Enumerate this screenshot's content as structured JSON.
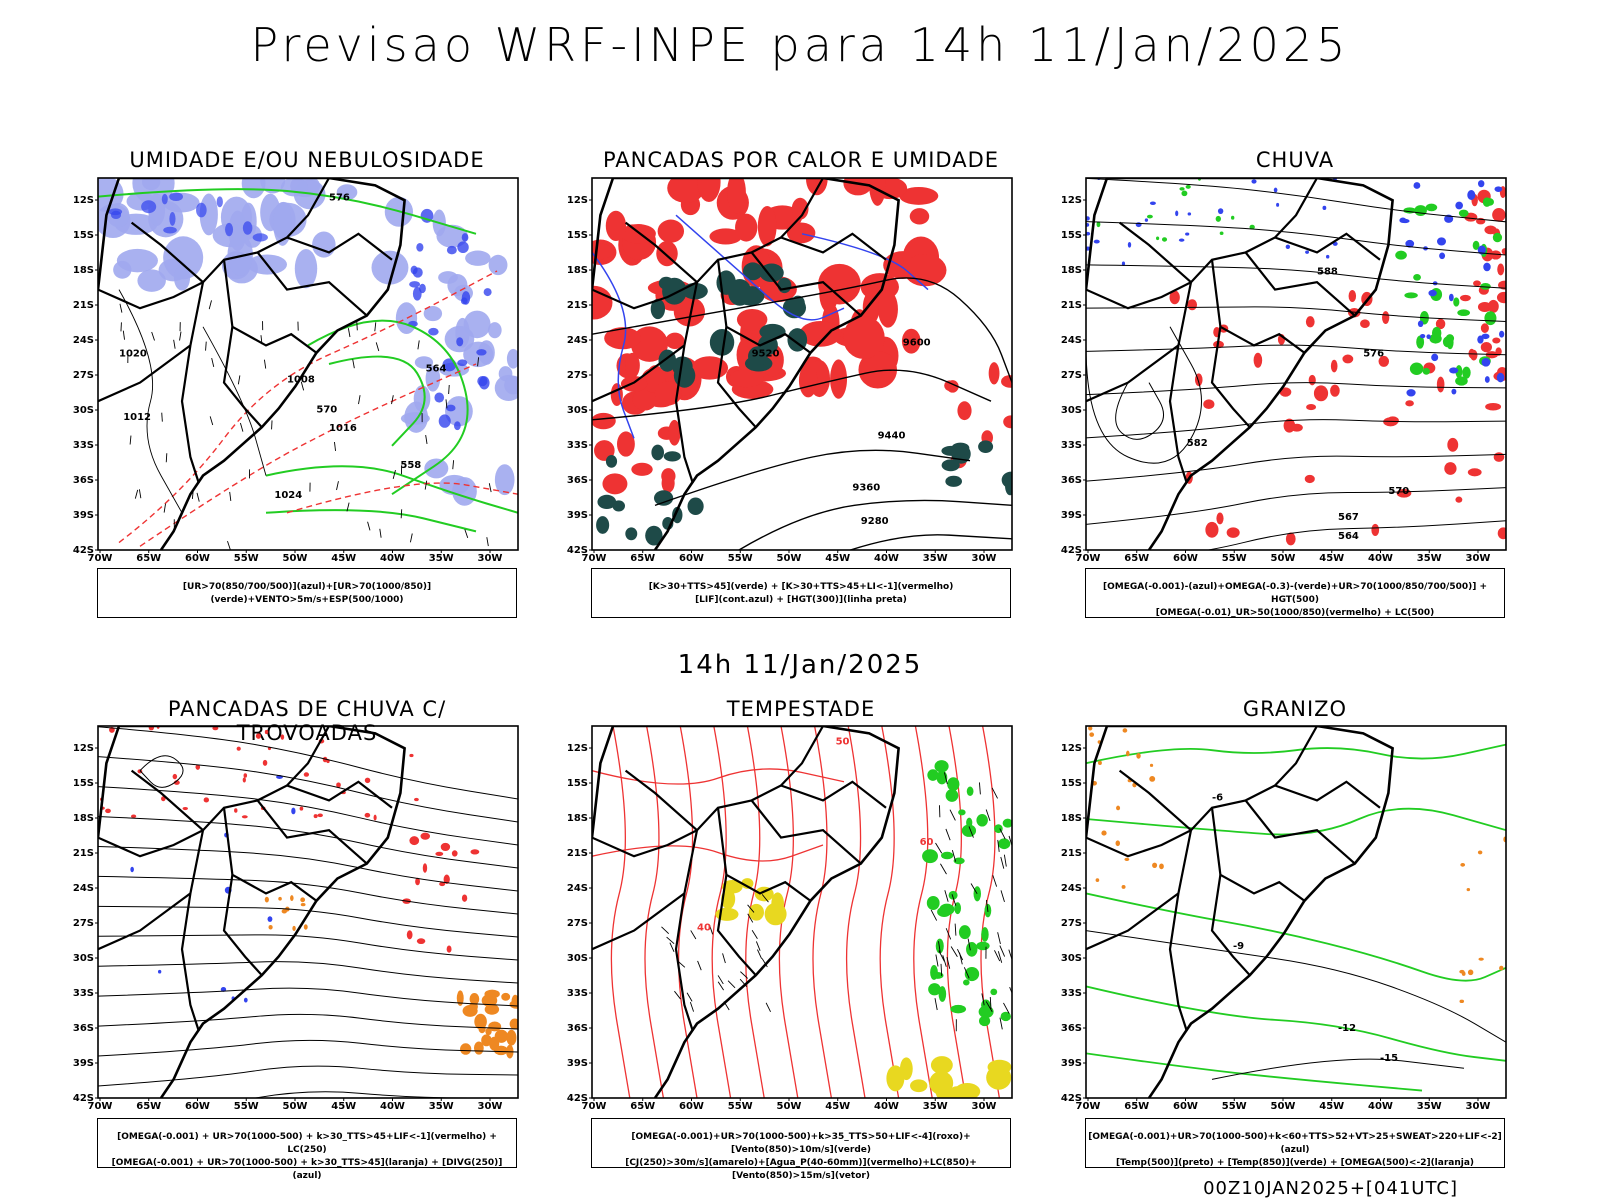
{
  "header": {
    "title": "Previsao WRF-INPE  para 14h 11/Jan/2025"
  },
  "mid_title": "14h 11/Jan/2025",
  "footer": "00Z10JAN2025+[041UTC]",
  "axes": {
    "lat_labels": [
      "12S",
      "15S",
      "18S",
      "21S",
      "24S",
      "27S",
      "30S",
      "33S",
      "36S",
      "39S",
      "42S"
    ],
    "lon_labels": [
      "70W",
      "65W",
      "60W",
      "55W",
      "50W",
      "45W",
      "40W",
      "35W",
      "30W"
    ]
  },
  "colors": {
    "blue": "#3344ee",
    "light_blue": "#a0a8ee",
    "green": "#22cc22",
    "red": "#ee3333",
    "dark_teal": "#1e4a48",
    "orange": "#ee8822",
    "yellow": "#e8d820"
  },
  "panels": [
    {
      "title": "UMIDADE E/OU NEBULOSIDADE",
      "legend": [
        "[UR>70(850/700/500)](azul)+[UR>70(1000/850)](verde)+VENTO>5m/s+ESP(500/1000)"
      ],
      "labels": [
        "1012",
        "1008",
        "1016",
        "1020",
        "1024",
        "576",
        "570",
        "564",
        "558"
      ]
    },
    {
      "title": "PANCADAS POR CALOR E UMIDADE",
      "legend": [
        "[K>30+TTS>45](verde) + [K>30+TTS>45+LI<-1](vermelho)",
        "[LIF](cont.azul) + [HGT(300)](linha preta)"
      ],
      "labels": [
        "9600",
        "9520",
        "9440",
        "9360",
        "9280"
      ]
    },
    {
      "title": "CHUVA",
      "legend": [
        "[OMEGA(-0.001)-(azul)+OMEGA(-0.3)-(verde)+UR>70(1000/850/700/500)] + HGT(500)",
        "[OMEGA(-0.01)_UR>50(1000/850)(vermelho) + LC(500)"
      ],
      "labels": [
        "588",
        "582",
        "576",
        "570",
        "567",
        "564"
      ]
    },
    {
      "title": "PANCADAS DE CHUVA C/ TROVOADAS",
      "legend": [
        "[OMEGA(-0.001) + UR>70(1000-500) + k>30_TTS>45+LIF<-1](vermelho) + LC(250)",
        "[OMEGA(-0.001) + UR>70(1000-500) + k>30_TTS>45](laranja) + [DIVG(250)](azul)"
      ],
      "labels": []
    },
    {
      "title": "TEMPESTADE",
      "legend": [
        "[OMEGA(-0.001)+UR>70(1000-500)+k>35_TTS>50+LIF<-4](roxo)+[Vento(850)>10m/s](verde)",
        "[CJ(250)>30m/s](amarelo)+[Agua_P(40-60mm)](vermelho)+LC(850)+[Vento(850)>15m/s](vetor)"
      ],
      "labels": [
        "40",
        "50",
        "60"
      ]
    },
    {
      "title": "GRANIZO",
      "legend": [
        "[OMEGA(-0.001)+UR>70(1000-500)+k<60+TTS>52+VT>25+SWEAT>220+LIF<-2](azul)",
        "[Temp(500)](preto) + [Temp(850)](verde) + [OMEGA(500)<-2](laranja)"
      ],
      "labels": [
        "-12",
        "-15",
        "-6",
        "-9"
      ]
    }
  ]
}
